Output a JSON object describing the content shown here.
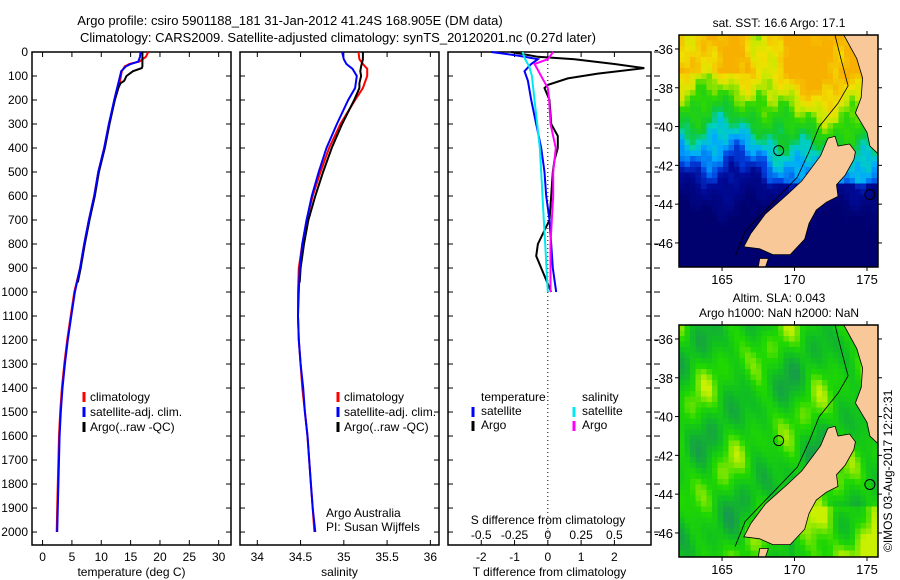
{
  "title": {
    "line1": "Argo profile: csiro 5901188_181 31-Jan-2012 41.24S 168.905E (DM data)",
    "line2": "Climatology: CARS2009. Satellite-adjusted climatology: synTS_20120201.nc (0.27d later)"
  },
  "credits": {
    "line1": "Argo Australia",
    "line2": "PI: Susan Wijffels"
  },
  "timestamp": "©IMOS 03-Aug-2017 12:22:31",
  "chart_data": [
    {
      "type": "line",
      "xlabel": "temperature (deg C)",
      "xlim": [
        -1.8,
        32.1
      ],
      "xticks": [
        "0",
        "5",
        "10",
        "15",
        "20",
        "25",
        "30"
      ],
      "ylim": [
        0,
        2054
      ],
      "yticks": [
        "0",
        "100",
        "200",
        "300",
        "400",
        "500",
        "600",
        "700",
        "800",
        "900",
        "1000",
        "1100",
        "1200",
        "1300",
        "1400",
        "1500",
        "1600",
        "1700",
        "1800",
        "1900",
        "2000"
      ],
      "legend": [
        "climatology",
        "satellite-adj. clim.",
        "Argo(..raw -QC)"
      ],
      "series": [
        {
          "name": "climatology",
          "color": "#ff0000",
          "depth": [
            0,
            20,
            40,
            50,
            60,
            80,
            120,
            150,
            200,
            300,
            400,
            500,
            600,
            700,
            800,
            900,
            1000,
            1100,
            1200,
            1300,
            1400,
            1500,
            1600,
            1700,
            1800,
            1900,
            2000
          ],
          "values": [
            18.0,
            17.6,
            16.5,
            14.8,
            14.0,
            13.5,
            13.2,
            12.9,
            12.3,
            11.3,
            10.5,
            9.5,
            8.8,
            7.9,
            7.1,
            6.4,
            5.4,
            4.8,
            4.2,
            3.7,
            3.3,
            3.0,
            2.8,
            2.7,
            2.6,
            2.5,
            2.4
          ]
        },
        {
          "name": "Argo(..raw -QC)",
          "color": "#000000",
          "depth": [
            0,
            20,
            40,
            60,
            67,
            80,
            100,
            120,
            130,
            150,
            200,
            300,
            400,
            500,
            600,
            700,
            800,
            900,
            960
          ],
          "values": [
            17.0,
            17.0,
            17.0,
            17.0,
            16.9,
            15.4,
            14.3,
            13.9,
            13.3,
            12.9,
            12.3,
            11.4,
            10.6,
            9.6,
            8.9,
            8.0,
            7.2,
            6.5,
            6.0
          ]
        },
        {
          "name": "satellite-adj. clim.",
          "color": "#0000ff",
          "depth": [
            0,
            20,
            40,
            50,
            60,
            80,
            120,
            150,
            200,
            300,
            400,
            500,
            600,
            700,
            800,
            900,
            1000,
            1100,
            1200,
            1300,
            1400,
            1500,
            1600,
            1700,
            1800,
            1900,
            2000
          ],
          "values": [
            16.7,
            16.6,
            16.3,
            15.0,
            14.2,
            13.4,
            13.0,
            12.7,
            12.2,
            11.3,
            10.5,
            9.5,
            8.8,
            7.9,
            7.1,
            6.4,
            5.5,
            4.9,
            4.3,
            3.8,
            3.4,
            3.1,
            2.9,
            2.8,
            2.7,
            2.6,
            2.5
          ]
        }
      ]
    },
    {
      "type": "line",
      "xlabel": "salinity",
      "xlim": [
        33.8,
        36.1
      ],
      "xticks": [
        "34",
        "34.5",
        "35",
        "35.5",
        "36"
      ],
      "ylim": [
        0,
        2054
      ],
      "legend": [
        "climatology",
        "satellite-adj. clim.",
        "Argo(..raw -QC)"
      ],
      "series": [
        {
          "name": "climatology",
          "color": "#ff0000",
          "depth": [
            0,
            30,
            50,
            70,
            100,
            150,
            200,
            300,
            400,
            500,
            600,
            700,
            800,
            900,
            1000,
            1100,
            1200,
            1300,
            1400,
            1500,
            1600,
            1700,
            1800,
            1900,
            2000
          ],
          "values": [
            35.17,
            35.18,
            35.22,
            35.27,
            35.27,
            35.22,
            35.13,
            34.96,
            34.83,
            34.73,
            34.64,
            34.57,
            34.52,
            34.48,
            34.47,
            34.47,
            34.48,
            34.5,
            34.52,
            34.55,
            34.58,
            34.6,
            34.62,
            34.64,
            34.66
          ]
        },
        {
          "name": "Argo(..raw -QC)",
          "color": "#000000",
          "depth": [
            0,
            30,
            60,
            80,
            100,
            130,
            150,
            200,
            300,
            400,
            500,
            600,
            700,
            800,
            900,
            960
          ],
          "values": [
            35.22,
            35.22,
            35.2,
            35.19,
            35.2,
            35.18,
            35.18,
            35.12,
            34.98,
            34.86,
            34.76,
            34.67,
            34.59,
            34.54,
            34.5,
            34.49
          ]
        },
        {
          "name": "satellite-adj. clim.",
          "color": "#0000ff",
          "depth": [
            0,
            30,
            50,
            70,
            100,
            150,
            200,
            300,
            400,
            500,
            600,
            700,
            800,
            900,
            1000,
            1100,
            1200,
            1300,
            1400,
            1500,
            1600,
            1700,
            1800,
            1900,
            2000
          ],
          "values": [
            34.98,
            35.0,
            35.03,
            35.1,
            35.15,
            35.13,
            35.05,
            34.92,
            34.8,
            34.71,
            34.63,
            34.57,
            34.52,
            34.49,
            34.48,
            34.47,
            34.48,
            34.5,
            34.53,
            34.55,
            34.58,
            34.6,
            34.62,
            34.64,
            34.67
          ]
        }
      ]
    },
    {
      "type": "line",
      "xlabel": "T difference from climatology",
      "xlabel2": "S difference from climatology",
      "xlim": [
        -3.0,
        3.1
      ],
      "xticks": [
        "-2",
        "-1",
        "0",
        "1",
        "2"
      ],
      "xticks_s": [
        "-0.5",
        "-0.25",
        "0",
        "0.25",
        "0.5"
      ],
      "ylim": [
        0,
        2054
      ],
      "legend": {
        "temperature": "temperature",
        "salinity": "salinity",
        "t_sat": "satellite",
        "t_argo": "Argo",
        "s_sat": "satellite",
        "s_argo": "Argo"
      },
      "series": [
        {
          "name": "T Argo",
          "unit": "T",
          "color": "#000000",
          "depth": [
            0,
            20,
            30,
            50,
            67,
            90,
            110,
            137,
            150,
            200,
            300,
            350,
            400,
            450,
            500,
            600,
            700,
            800,
            850,
            900,
            950,
            1000
          ],
          "values": [
            -1.1,
            -0.3,
            0.8,
            2.0,
            2.9,
            1.5,
            0.6,
            0.0,
            -0.1,
            0.05,
            0.1,
            0.3,
            0.3,
            0.2,
            0.15,
            0.1,
            0.05,
            -0.3,
            -0.35,
            -0.2,
            -0.05,
            0.1
          ]
        },
        {
          "name": "T satellite",
          "unit": "T",
          "color": "#0000ff",
          "depth": [
            0,
            15,
            30,
            50,
            80,
            120,
            200,
            300,
            400,
            500,
            600,
            700,
            800,
            900,
            1000
          ],
          "values": [
            -1.7,
            -0.9,
            -0.3,
            -0.5,
            -0.7,
            -0.6,
            -0.5,
            -0.35,
            -0.2,
            -0.1,
            -0.05,
            0.05,
            0.1,
            0.15,
            0.25
          ]
        },
        {
          "name": "S satellite",
          "unit": "S",
          "color": "#00e8f0",
          "depth": [
            0,
            30,
            60,
            100,
            200,
            300,
            400,
            500,
            600,
            700,
            800,
            900,
            1000
          ],
          "values": [
            -0.19,
            -0.17,
            -0.14,
            -0.12,
            -0.1,
            -0.08,
            -0.06,
            -0.05,
            -0.04,
            -0.03,
            -0.02,
            -0.01,
            0.0
          ]
        },
        {
          "name": "S Argo",
          "unit": "S",
          "color": "#ff00ff",
          "depth": [
            0,
            30,
            50,
            70,
            90,
            120,
            150,
            200,
            300,
            400,
            500,
            600,
            700,
            800,
            900,
            1000
          ],
          "values": [
            0.04,
            0.0,
            -0.1,
            -0.08,
            -0.06,
            -0.03,
            0.0,
            0.01,
            0.02,
            0.06,
            0.04,
            0.04,
            0.03,
            0.02,
            0.02,
            0.02
          ]
        }
      ]
    }
  ],
  "maps": [
    {
      "type": "heatmap",
      "field": "sst",
      "title": "sat. SST: 16.6 Argo: 17.1",
      "lonlim": [
        162.03,
        175.76
      ],
      "latlim": [
        -47.24,
        -35.28
      ],
      "lonticks": [
        "165",
        "170",
        "175"
      ],
      "latticks": [
        "-36",
        "-38",
        "-40",
        "-42",
        "-44",
        "-46"
      ],
      "float": {
        "lon": 168.905,
        "lat": -41.24
      }
    },
    {
      "type": "heatmap",
      "field": "sla",
      "title": "Altim. SLA: 0.043",
      "subtitle": "Argo h1000: NaN h2000: NaN",
      "lonlim": [
        162.03,
        175.76
      ],
      "latlim": [
        -47.24,
        -35.28
      ],
      "lonticks": [
        "165",
        "170",
        "175"
      ],
      "latticks": [
        "-36",
        "-38",
        "-40",
        "-42",
        "-44",
        "-46"
      ],
      "float": {
        "lon": 168.905,
        "lat": -41.24
      }
    }
  ],
  "colors": {
    "land": "#f8c898",
    "frame": "#000000"
  }
}
